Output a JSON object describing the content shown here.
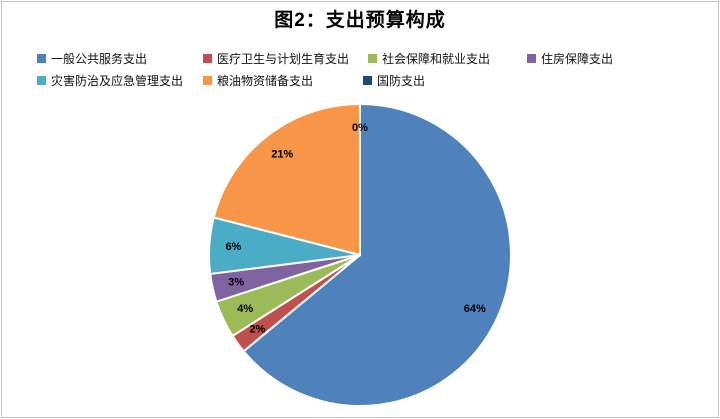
{
  "title": "图2：支出预算构成",
  "chart_data": {
    "type": "pie",
    "title": "图2：支出预算构成",
    "legend_position": "top",
    "start_angle_deg": 0,
    "direction": "clockwise",
    "units": "percent",
    "series": [
      {
        "name": "一般公共服务支出",
        "value": 64,
        "label": "64%",
        "color": "#4F81BD"
      },
      {
        "name": "医疗卫生与计划生育支出",
        "value": 2,
        "label": "2%",
        "color": "#C0504D"
      },
      {
        "name": "社会保障和就业支出",
        "value": 4,
        "label": "4%",
        "color": "#9BBB59"
      },
      {
        "name": "住房保障支出",
        "value": 3,
        "label": "3%",
        "color": "#8064A2"
      },
      {
        "name": "灾害防治及应急管理支出",
        "value": 6,
        "label": "6%",
        "color": "#4BACC6"
      },
      {
        "name": "粮油物资储备支出",
        "value": 21,
        "label": "21%",
        "color": "#F79646"
      },
      {
        "name": "国防支出",
        "value": 0,
        "label": "0%",
        "color": "#1F497D"
      }
    ]
  }
}
